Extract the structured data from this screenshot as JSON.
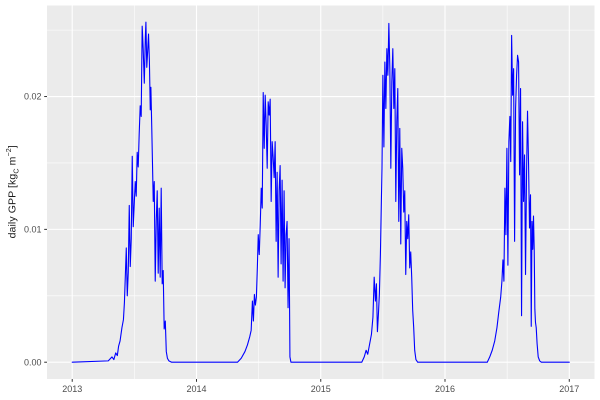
{
  "figure": {
    "background": "#FFFFFF"
  },
  "chart_data": {
    "type": "line",
    "title": "",
    "xlabel": "",
    "ylabel": "daily GPP [kgC m-2]",
    "ylabel_parts": {
      "prefix": "daily GPP [kg",
      "sub": "C",
      "mid": " m",
      "sup": "−2",
      "suffix": "]"
    },
    "legend": "none",
    "grid": "major+minor",
    "panel_background": "#EBEBEB",
    "grid_color": "#FFFFFF",
    "axis_text_color": "#4D4D4D",
    "tick_color": "#333333",
    "xlim": [
      2012.797,
      2017.203
    ],
    "ylim": [
      -0.001264,
      0.026853
    ],
    "x_ticks": [
      {
        "value": 2013,
        "label": "2013"
      },
      {
        "value": 2014,
        "label": "2014"
      },
      {
        "value": 2015,
        "label": "2015"
      },
      {
        "value": 2016,
        "label": "2016"
      },
      {
        "value": 2017,
        "label": "2017"
      }
    ],
    "y_ticks": [
      {
        "value": 0.0,
        "label": "0.00"
      },
      {
        "value": 0.01,
        "label": "0.01"
      },
      {
        "value": 0.02,
        "label": "0.02"
      }
    ],
    "x_minor_ticks": [
      2013.5,
      2014.5,
      2015.5,
      2016.5
    ],
    "y_minor_ticks": [
      0.005,
      0.015,
      0.025
    ],
    "series": [
      {
        "name": "daily GPP",
        "color": "#0000FF",
        "points": [
          [
            2013.0,
            0
          ],
          [
            2013.29,
            0.0001
          ],
          [
            2013.32,
            0.0004
          ],
          [
            2013.335,
            0.0002
          ],
          [
            2013.35,
            0.0007
          ],
          [
            2013.363,
            0.0005
          ],
          [
            2013.373,
            0.0012
          ],
          [
            2013.385,
            0.0016
          ],
          [
            2013.4,
            0.0026
          ],
          [
            2013.412,
            0.0032
          ],
          [
            2013.42,
            0.0045
          ],
          [
            2013.435,
            0.0086
          ],
          [
            2013.443,
            0.005
          ],
          [
            2013.451,
            0.0068
          ],
          [
            2013.459,
            0.0118
          ],
          [
            2013.467,
            0.0072
          ],
          [
            2013.475,
            0.0093
          ],
          [
            2013.483,
            0.0155
          ],
          [
            2013.491,
            0.0102
          ],
          [
            2013.499,
            0.0119
          ],
          [
            2013.507,
            0.0136
          ],
          [
            2013.515,
            0.0125
          ],
          [
            2013.523,
            0.0158
          ],
          [
            2013.531,
            0.0147
          ],
          [
            2013.539,
            0.0172
          ],
          [
            2013.547,
            0.0193
          ],
          [
            2013.555,
            0.0185
          ],
          [
            2013.563,
            0.0253
          ],
          [
            2013.571,
            0.0236
          ],
          [
            2013.58,
            0.021
          ],
          [
            2013.588,
            0.0243
          ],
          [
            2013.593,
            0.0256
          ],
          [
            2013.6,
            0.0222
          ],
          [
            2013.608,
            0.0236
          ],
          [
            2013.614,
            0.0247
          ],
          [
            2013.621,
            0.0227
          ],
          [
            2013.628,
            0.019
          ],
          [
            2013.633,
            0.0207
          ],
          [
            2013.64,
            0.0177
          ],
          [
            2013.645,
            0.0154
          ],
          [
            2013.652,
            0.0121
          ],
          [
            2013.66,
            0.0136
          ],
          [
            2013.668,
            0.0061
          ],
          [
            2013.676,
            0.0106
          ],
          [
            2013.684,
            0.0129
          ],
          [
            2013.692,
            0.0067
          ],
          [
            2013.7,
            0.0116
          ],
          [
            2013.708,
            0.0064
          ],
          [
            2013.716,
            0.0131
          ],
          [
            2013.724,
            0.0059
          ],
          [
            2013.732,
            0.0069
          ],
          [
            2013.74,
            0.0025
          ],
          [
            2013.749,
            0.0031
          ],
          [
            2013.757,
            0.0008
          ],
          [
            2013.766,
            0.0003
          ],
          [
            2013.778,
            0.0001
          ],
          [
            2013.8,
            0.0
          ],
          [
            2014.33,
            0.0
          ],
          [
            2014.36,
            0.0003
          ],
          [
            2014.39,
            0.0008
          ],
          [
            2014.41,
            0.0013
          ],
          [
            2014.428,
            0.0019
          ],
          [
            2014.44,
            0.0024
          ],
          [
            2014.45,
            0.0046
          ],
          [
            2014.458,
            0.0031
          ],
          [
            2014.466,
            0.0051
          ],
          [
            2014.474,
            0.0043
          ],
          [
            2014.482,
            0.0049
          ],
          [
            2014.49,
            0.0072
          ],
          [
            2014.497,
            0.0096
          ],
          [
            2014.505,
            0.0081
          ],
          [
            2014.513,
            0.0103
          ],
          [
            2014.521,
            0.0131
          ],
          [
            2014.529,
            0.0116
          ],
          [
            2014.537,
            0.0203
          ],
          [
            2014.545,
            0.0161
          ],
          [
            2014.553,
            0.0201
          ],
          [
            2014.561,
            0.0178
          ],
          [
            2014.569,
            0.0146
          ],
          [
            2014.577,
            0.0196
          ],
          [
            2014.585,
            0.0186
          ],
          [
            2014.593,
            0.0198
          ],
          [
            2014.601,
            0.0121
          ],
          [
            2014.609,
            0.0166
          ],
          [
            2014.617,
            0.0154
          ],
          [
            2014.625,
            0.0139
          ],
          [
            2014.633,
            0.0166
          ],
          [
            2014.641,
            0.0091
          ],
          [
            2014.649,
            0.0143
          ],
          [
            2014.657,
            0.0064
          ],
          [
            2014.665,
            0.0129
          ],
          [
            2014.673,
            0.0148
          ],
          [
            2014.681,
            0.0074
          ],
          [
            2014.689,
            0.0137
          ],
          [
            2014.697,
            0.0061
          ],
          [
            2014.705,
            0.0129
          ],
          [
            2014.713,
            0.0056
          ],
          [
            2014.721,
            0.0096
          ],
          [
            2014.729,
            0.0106
          ],
          [
            2014.737,
            0.0041
          ],
          [
            2014.745,
            0.0093
          ],
          [
            2014.752,
            0.0004
          ],
          [
            2014.76,
            0.0
          ],
          [
            2015.33,
            0.0
          ],
          [
            2015.35,
            0.0004
          ],
          [
            2015.365,
            0.0009
          ],
          [
            2015.378,
            0.0006
          ],
          [
            2015.392,
            0.0013
          ],
          [
            2015.408,
            0.0021
          ],
          [
            2015.42,
            0.0034
          ],
          [
            2015.43,
            0.0064
          ],
          [
            2015.44,
            0.0046
          ],
          [
            2015.448,
            0.0059
          ],
          [
            2015.456,
            0.0023
          ],
          [
            2015.464,
            0.0036
          ],
          [
            2015.472,
            0.0052
          ],
          [
            2015.48,
            0.0081
          ],
          [
            2015.488,
            0.0122
          ],
          [
            2015.493,
            0.0146
          ],
          [
            2015.5,
            0.0216
          ],
          [
            2015.508,
            0.0162
          ],
          [
            2015.516,
            0.0226
          ],
          [
            2015.524,
            0.0191
          ],
          [
            2015.532,
            0.0236
          ],
          [
            2015.54,
            0.0216
          ],
          [
            2015.548,
            0.0255
          ],
          [
            2015.556,
            0.0221
          ],
          [
            2015.564,
            0.0146
          ],
          [
            2015.572,
            0.0211
          ],
          [
            2015.58,
            0.0236
          ],
          [
            2015.588,
            0.0191
          ],
          [
            2015.596,
            0.0221
          ],
          [
            2015.604,
            0.0121
          ],
          [
            2015.612,
            0.0181
          ],
          [
            2015.62,
            0.0206
          ],
          [
            2015.628,
            0.0106
          ],
          [
            2015.636,
            0.0176
          ],
          [
            2015.644,
            0.0089
          ],
          [
            2015.652,
            0.0161
          ],
          [
            2015.66,
            0.0146
          ],
          [
            2015.668,
            0.0113
          ],
          [
            2015.676,
            0.0129
          ],
          [
            2015.684,
            0.0066
          ],
          [
            2015.692,
            0.0106
          ],
          [
            2015.7,
            0.0093
          ],
          [
            2015.708,
            0.0111
          ],
          [
            2015.716,
            0.0071
          ],
          [
            2015.724,
            0.0083
          ],
          [
            2015.732,
            0.0064
          ],
          [
            2015.74,
            0.0039
          ],
          [
            2015.748,
            0.0026
          ],
          [
            2015.756,
            0.0009
          ],
          [
            2015.766,
            0.0002
          ],
          [
            2015.78,
            0.0
          ],
          [
            2016.34,
            0.0
          ],
          [
            2016.36,
            0.0004
          ],
          [
            2016.38,
            0.0009
          ],
          [
            2016.4,
            0.0016
          ],
          [
            2016.418,
            0.0026
          ],
          [
            2016.433,
            0.0038
          ],
          [
            2016.448,
            0.0049
          ],
          [
            2016.458,
            0.0061
          ],
          [
            2016.466,
            0.0077
          ],
          [
            2016.474,
            0.0061
          ],
          [
            2016.482,
            0.0131
          ],
          [
            2016.49,
            0.0096
          ],
          [
            2016.498,
            0.0161
          ],
          [
            2016.506,
            0.0073
          ],
          [
            2016.514,
            0.0166
          ],
          [
            2016.522,
            0.0185
          ],
          [
            2016.529,
            0.0151
          ],
          [
            2016.536,
            0.0246
          ],
          [
            2016.544,
            0.0201
          ],
          [
            2016.552,
            0.0221
          ],
          [
            2016.56,
            0.0091
          ],
          [
            2016.568,
            0.0191
          ],
          [
            2016.576,
            0.0216
          ],
          [
            2016.584,
            0.0231
          ],
          [
            2016.592,
            0.0226
          ],
          [
            2016.6,
            0.0141
          ],
          [
            2016.608,
            0.0206
          ],
          [
            2016.616,
            0.0035
          ],
          [
            2016.624,
            0.0181
          ],
          [
            2016.632,
            0.0121
          ],
          [
            2016.64,
            0.0156
          ],
          [
            2016.648,
            0.0066
          ],
          [
            2016.656,
            0.0141
          ],
          [
            2016.664,
            0.0189
          ],
          [
            2016.672,
            0.0151
          ],
          [
            2016.68,
            0.0101
          ],
          [
            2016.688,
            0.0126
          ],
          [
            2016.694,
            0.0027
          ],
          [
            2016.7,
            0.0106
          ],
          [
            2016.706,
            0.0085
          ],
          [
            2016.712,
            0.011
          ],
          [
            2016.718,
            0.0084
          ],
          [
            2016.723,
            0.004
          ],
          [
            2016.728,
            0.003
          ],
          [
            2016.734,
            0.0026
          ],
          [
            2016.741,
            0.0014
          ],
          [
            2016.75,
            0.0004
          ],
          [
            2016.762,
            0.0001
          ],
          [
            2016.775,
            0.0
          ],
          [
            2017.0,
            0.0
          ]
        ]
      }
    ]
  }
}
